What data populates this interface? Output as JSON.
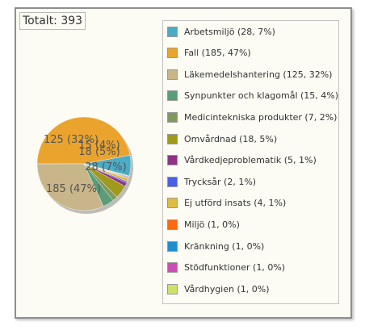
{
  "chart_data": {
    "type": "pie",
    "total_label": "Totalt: 393",
    "slices": [
      {
        "label": "Arbetsmiljö (28, 7%)",
        "value": 28,
        "color": "#4bacc6",
        "data_label": "28 (7%)"
      },
      {
        "label": "Fall (185, 47%)",
        "value": 185,
        "color": "#eaa42e",
        "data_label": "185 (47%)"
      },
      {
        "label": "Läkemedelshantering (125, 32%)",
        "value": 125,
        "color": "#c8b68a",
        "data_label": "125 (32%)"
      },
      {
        "label": "Synpunkter och klagomål (15, 4%)",
        "value": 15,
        "color": "#5a9c78",
        "data_label": "15 (4%)"
      },
      {
        "label": "Medicintekniska produkter (7, 2%)",
        "value": 7,
        "color": "#7f9a5e",
        "data_label": ""
      },
      {
        "label": "Omvårdnad (18, 5%)",
        "value": 18,
        "color": "#a09a1b",
        "data_label": "18 (5%)"
      },
      {
        "label": "Vårdkedjeproblematik (5, 1%)",
        "value": 5,
        "color": "#8e3384",
        "data_label": ""
      },
      {
        "label": "Trycksår (2, 1%)",
        "value": 2,
        "color": "#4a5ee8",
        "data_label": ""
      },
      {
        "label": "Ej utförd insats (4, 1%)",
        "value": 4,
        "color": "#dfbb45",
        "data_label": ""
      },
      {
        "label": "Miljö (1, 0%)",
        "value": 1,
        "color": "#ff6a10",
        "data_label": ""
      },
      {
        "label": "Kränkning (1, 0%)",
        "value": 1,
        "color": "#1f8fcf",
        "data_label": ""
      },
      {
        "label": "Stödfunktioner (1, 0%)",
        "value": 1,
        "color": "#c94fb5",
        "data_label": ""
      },
      {
        "label": "Vårdhygien (1, 0%)",
        "value": 1,
        "color": "#cde06a",
        "data_label": ""
      }
    ],
    "legend_position": "right"
  }
}
